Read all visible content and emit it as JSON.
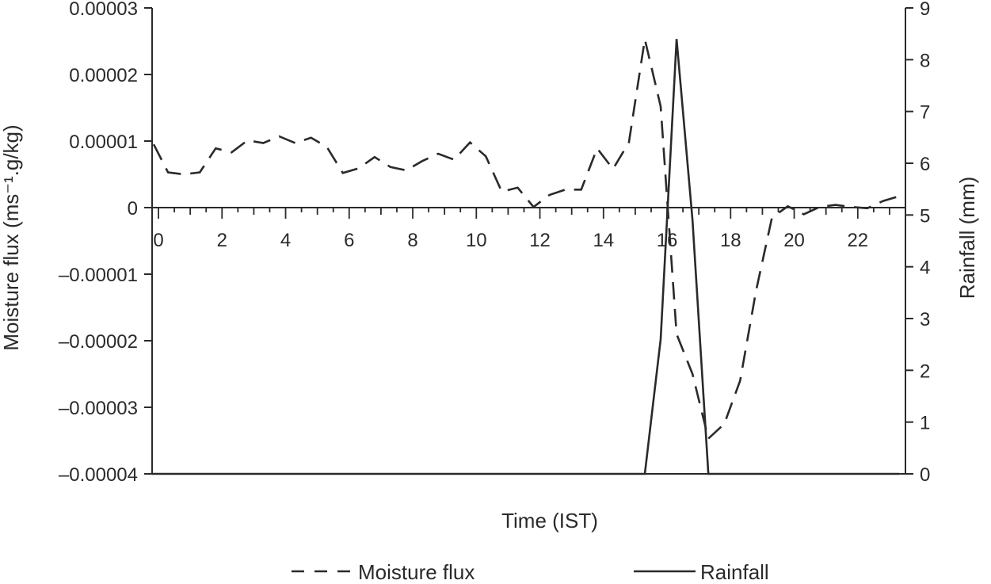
{
  "chart_data": {
    "type": "line",
    "xlabel": "Time (IST)",
    "ylabel_left": "Moisture flux (ms⁻¹.g/kg)",
    "ylabel_right": "Rainfall (mm)",
    "xlim": [
      -0.2,
      23.5
    ],
    "ylim_left": [
      -4e-05,
      3e-05
    ],
    "ylim_right": [
      0,
      9
    ],
    "x_ticks": [
      0,
      2,
      4,
      6,
      8,
      10,
      12,
      14,
      16,
      18,
      20,
      22
    ],
    "x_tick_labels": [
      "0",
      "2",
      "4",
      "6",
      "8",
      "10",
      "12",
      "14",
      "16",
      "18",
      "20",
      "22"
    ],
    "y_left_ticks": [
      3e-05,
      2e-05,
      1e-05,
      0,
      -1e-05,
      -2e-05,
      -3e-05,
      -4e-05
    ],
    "y_left_tick_labels": [
      "0.00003",
      "0.00002",
      "0.00001",
      "0",
      "–0.00001",
      "–0.00002",
      "–0.00003",
      "–0.00004"
    ],
    "y_right_ticks": [
      9,
      8,
      7,
      6,
      5,
      4,
      3,
      2,
      1,
      0
    ],
    "y_right_tick_labels": [
      "9",
      "8",
      "7",
      "6",
      "5",
      "4",
      "3",
      "2",
      "1",
      "0"
    ],
    "grid": false,
    "legend_position": "bottom",
    "series": [
      {
        "name": "Moisture flux",
        "axis": "left",
        "style": "dashed",
        "color": "#2a2a2a",
        "x": [
          -0.15,
          0.3,
          0.8,
          1.3,
          1.8,
          2.3,
          2.8,
          3.3,
          3.8,
          4.3,
          4.8,
          5.3,
          5.8,
          6.3,
          6.8,
          7.3,
          7.8,
          8.3,
          8.8,
          9.3,
          9.8,
          10.3,
          10.8,
          11.3,
          11.8,
          12.3,
          12.8,
          13.3,
          13.8,
          14.3,
          14.8,
          15.3,
          15.8,
          16.3,
          16.8,
          17.3,
          17.8,
          18.3,
          18.8,
          19.3,
          19.8,
          20.3,
          20.8,
          21.3,
          21.8,
          22.3,
          22.8,
          23.3
        ],
        "y": [
          9.5e-06,
          5.3e-06,
          5e-06,
          5.3e-06,
          8.9e-06,
          8.3e-06,
          1.01e-05,
          9.7e-06,
          1.07e-05,
          9.7e-06,
          1.05e-05,
          9.1e-06,
          5.2e-06,
          5.9e-06,
          7.6e-06,
          6.1e-06,
          5.6e-06,
          7e-06,
          8.1e-06,
          7.2e-06,
          9.8e-06,
          7.7e-06,
          2.4e-06,
          3e-06,
          1e-07,
          1.9e-06,
          2.7e-06,
          2.7e-06,
          8.9e-06,
          5.8e-06,
          9.8e-06,
          2.53e-05,
          1.52e-05,
          -1.9e-05,
          -2.5e-05,
          -3.47e-05,
          -3.25e-05,
          -2.6e-05,
          -1.25e-05,
          -1.5e-06,
          2e-07,
          -1e-06,
          1e-07,
          4e-07,
          1e-07,
          -1e-07,
          1e-06,
          1.7e-06
        ]
      },
      {
        "name": "Rainfall",
        "axis": "right",
        "style": "solid",
        "color": "#2a2a2a",
        "x": [
          -0.2,
          15.3,
          15.8,
          16.3,
          16.8,
          17.3,
          23.3
        ],
        "y": [
          0,
          0,
          2.6,
          8.4,
          4.9,
          0,
          0
        ]
      }
    ]
  }
}
